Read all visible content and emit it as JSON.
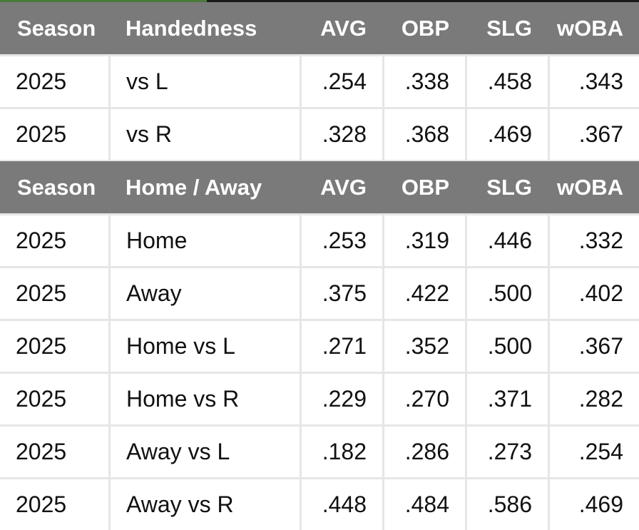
{
  "sections": [
    {
      "header": [
        "Season",
        "Handedness",
        "AVG",
        "OBP",
        "SLG",
        "wOBA"
      ],
      "rows": [
        [
          "2025",
          "vs L",
          ".254",
          ".338",
          ".458",
          ".343"
        ],
        [
          "2025",
          "vs R",
          ".328",
          ".368",
          ".469",
          ".367"
        ]
      ]
    },
    {
      "header": [
        "Season",
        "Home / Away",
        "AVG",
        "OBP",
        "SLG",
        "wOBA"
      ],
      "rows": [
        [
          "2025",
          "Home",
          ".253",
          ".319",
          ".446",
          ".332"
        ],
        [
          "2025",
          "Away",
          ".375",
          ".422",
          ".500",
          ".402"
        ],
        [
          "2025",
          "Home vs L",
          ".271",
          ".352",
          ".500",
          ".367"
        ],
        [
          "2025",
          "Home vs R",
          ".229",
          ".270",
          ".371",
          ".282"
        ],
        [
          "2025",
          "Away vs L",
          ".182",
          ".286",
          ".273",
          ".254"
        ],
        [
          "2025",
          "Away vs R",
          ".448",
          ".484",
          ".586",
          ".469"
        ]
      ]
    }
  ]
}
